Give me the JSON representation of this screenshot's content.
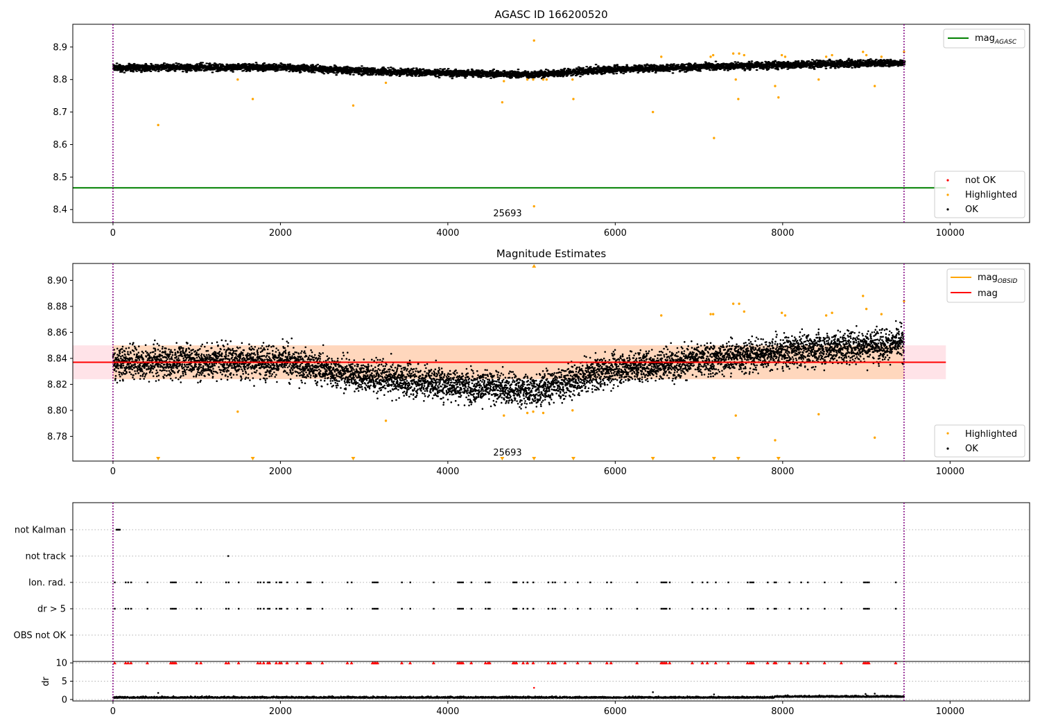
{
  "chart_data": [
    {
      "type": "scatter",
      "title": "AGASC ID 166200520",
      "xlabel": "",
      "ylabel": "",
      "xlim": [
        -480,
        10950
      ],
      "ylim": [
        8.36,
        8.97
      ],
      "x_ticks": [
        "0",
        "2000",
        "4000",
        "6000",
        "8000",
        "10000"
      ],
      "y_ticks": [
        "8.4",
        "8.5",
        "8.6",
        "8.7",
        "8.8",
        "8.9"
      ],
      "obsid_label": "25693",
      "obsid_boundaries": [
        0,
        9450
      ],
      "grid": false,
      "legend_upper": {
        "placement": "upper-right",
        "entries": [
          "mag_AGASC"
        ],
        "entry_main": "mag",
        "entry_sub": "AGASC"
      },
      "legend_lower": {
        "placement": "lower-right",
        "entries": [
          "not OK",
          "Highlighted",
          "OK"
        ]
      },
      "colors": {
        "mag_agasc": "#008000",
        "not_ok": "#ff0000",
        "highlighted": "#ffa500",
        "ok": "#000000",
        "boundary": "#800080"
      },
      "lines": [
        {
          "name": "mag_AGASC",
          "y": 8.467,
          "x_range": [
            -480,
            9950
          ]
        }
      ],
      "series": [
        {
          "name": "OK",
          "points": "dense band, ~9450 points",
          "x_range": [
            0,
            9450
          ],
          "trend": [
            [
              0,
              8.837
            ],
            [
              2000,
              8.838
            ],
            [
              3000,
              8.826
            ],
            [
              5000,
              8.815
            ],
            [
              6000,
              8.832
            ],
            [
              8000,
              8.845
            ],
            [
              9450,
              8.852
            ]
          ]
        },
        {
          "name": "Highlighted",
          "points": [
            [
              540,
              8.66
            ],
            [
              1490,
              8.8
            ],
            [
              1670,
              8.74
            ],
            [
              2870,
              8.72
            ],
            [
              3260,
              8.79
            ],
            [
              4650,
              8.73
            ],
            [
              4670,
              8.795
            ],
            [
              4950,
              8.8
            ],
            [
              5020,
              8.8
            ],
            [
              5030,
              8.92
            ],
            [
              5030,
              8.41
            ],
            [
              5140,
              8.8
            ],
            [
              5180,
              8.8
            ],
            [
              5490,
              8.8
            ],
            [
              5500,
              8.74
            ],
            [
              6450,
              8.7
            ],
            [
              6550,
              8.87
            ],
            [
              7140,
              8.87
            ],
            [
              7170,
              8.875
            ],
            [
              7180,
              8.62
            ],
            [
              7410,
              8.88
            ],
            [
              7440,
              8.8
            ],
            [
              7470,
              8.74
            ],
            [
              7480,
              8.88
            ],
            [
              7540,
              8.875
            ],
            [
              7910,
              8.78
            ],
            [
              7950,
              8.745
            ],
            [
              7990,
              8.875
            ],
            [
              8030,
              8.87
            ],
            [
              8430,
              8.8
            ],
            [
              8520,
              8.87
            ],
            [
              8590,
              8.875
            ],
            [
              8960,
              8.885
            ],
            [
              9000,
              8.875
            ],
            [
              9100,
              8.78
            ],
            [
              9180,
              8.87
            ],
            [
              9450,
              8.885
            ]
          ]
        },
        {
          "name": "not OK",
          "points": []
        }
      ]
    },
    {
      "type": "scatter",
      "title": "Magnitude Estimates",
      "xlabel": "",
      "ylabel": "",
      "xlim": [
        -480,
        10950
      ],
      "ylim": [
        8.761,
        8.913
      ],
      "x_ticks": [
        "0",
        "2000",
        "4000",
        "6000",
        "8000",
        "10000"
      ],
      "y_ticks": [
        "8.78",
        "8.80",
        "8.82",
        "8.84",
        "8.86",
        "8.88",
        "8.90"
      ],
      "obsid_label": "25693",
      "obsid_boundaries": [
        0,
        9450
      ],
      "grid": false,
      "legend_upper": {
        "placement": "upper-right",
        "entries": [
          "mag_OBSID",
          "mag"
        ],
        "entry1_main": "mag",
        "entry1_sub": "OBSID",
        "entry2": "mag"
      },
      "legend_lower": {
        "placement": "lower-right",
        "entries": [
          "Highlighted",
          "OK"
        ]
      },
      "colors": {
        "mag_obsid": "#ffa500",
        "mag": "#ff0000",
        "band_mag": "#ffc0cb",
        "band_obsid": "#ffcfa0",
        "highlighted": "#ffa500",
        "ok": "#000000",
        "boundary": "#800080"
      },
      "lines": [
        {
          "name": "mag",
          "y": 8.837,
          "x_range": [
            -480,
            9950
          ],
          "band": [
            8.824,
            8.85
          ]
        },
        {
          "name": "mag_OBSID",
          "y": 8.837,
          "x_range": [
            0,
            9450
          ],
          "band": [
            8.824,
            8.85
          ]
        }
      ],
      "series": [
        {
          "name": "OK",
          "points": "dense scatter, ~9450 points",
          "x_range": [
            0,
            9450
          ],
          "trend": [
            [
              0,
              8.837
            ],
            [
              2000,
              8.838
            ],
            [
              3000,
              8.826
            ],
            [
              5000,
              8.815
            ],
            [
              6000,
              8.832
            ],
            [
              8000,
              8.845
            ],
            [
              9450,
              8.852
            ]
          ]
        },
        {
          "name": "Highlighted",
          "points": [
            [
              1490,
              8.799
            ],
            [
              3260,
              8.792
            ],
            [
              4670,
              8.796
            ],
            [
              4950,
              8.798
            ],
            [
              5020,
              8.799
            ],
            [
              5140,
              8.798
            ],
            [
              5490,
              8.8
            ],
            [
              6550,
              8.873
            ],
            [
              7140,
              8.874
            ],
            [
              7170,
              8.874
            ],
            [
              7410,
              8.882
            ],
            [
              7440,
              8.796
            ],
            [
              7480,
              8.882
            ],
            [
              7540,
              8.876
            ],
            [
              7910,
              8.777
            ],
            [
              7990,
              8.875
            ],
            [
              8030,
              8.873
            ],
            [
              8430,
              8.797
            ],
            [
              8520,
              8.873
            ],
            [
              8590,
              8.875
            ],
            [
              8960,
              8.888
            ],
            [
              9000,
              8.878
            ],
            [
              9100,
              8.779
            ],
            [
              9180,
              8.874
            ],
            [
              9450,
              8.884
            ]
          ]
        },
        {
          "name": "below range (markers at bottom edge)",
          "x": [
            540,
            1670,
            2870,
            4650,
            5030,
            5500,
            6450,
            7180,
            7470,
            7950
          ]
        },
        {
          "name": "above range (marker at top edge)",
          "x": [
            5030
          ]
        }
      ]
    },
    {
      "type": "scatter",
      "title": "",
      "xlabel": "",
      "ylabel": "",
      "xlim": [
        -480,
        10950
      ],
      "categories": [
        "not Kalman",
        "not track",
        "Ion. rad.",
        "dr > 5",
        "OBS not OK"
      ],
      "grid": "dotted horizontal",
      "colors": {
        "ok": "#000000",
        "boundary": "#800080"
      },
      "series": [
        {
          "name": "not Kalman",
          "x": [
            40,
            50,
            60,
            70,
            80
          ]
        },
        {
          "name": "not track",
          "x": [
            1375
          ]
        },
        {
          "name": "Ion. rad.",
          "x": [
            20,
            150,
            180,
            215,
            410,
            690,
            710,
            730,
            750,
            1000,
            1050,
            1350,
            1380,
            1500,
            1730,
            1760,
            1800,
            1850,
            1870,
            1950,
            1990,
            2010,
            2080,
            2200,
            2320,
            2340,
            2360,
            2500,
            2800,
            2850,
            3100,
            3120,
            3140,
            3160,
            3450,
            3550,
            3830,
            4120,
            4140,
            4160,
            4180,
            4280,
            4450,
            4480,
            4500,
            4780,
            4800,
            4820,
            4900,
            4950,
            5020,
            5200,
            5250,
            5280,
            5400,
            5550,
            5700,
            5900,
            5950,
            6260,
            6550,
            6570,
            6590,
            6610,
            6650,
            6920,
            7040,
            7100,
            7200,
            7350,
            7580,
            7610,
            7630,
            7650,
            7820,
            7900,
            7920,
            8080,
            8220,
            8300,
            8500,
            8700,
            8970,
            8990,
            9010,
            9030,
            9350
          ]
        },
        {
          "name": "dr > 5",
          "x": [
            20,
            150,
            180,
            215,
            410,
            690,
            710,
            730,
            750,
            1000,
            1050,
            1350,
            1380,
            1500,
            1730,
            1760,
            1800,
            1850,
            1870,
            1950,
            1990,
            2010,
            2080,
            2200,
            2320,
            2340,
            2360,
            2500,
            2800,
            2850,
            3100,
            3120,
            3140,
            3160,
            3450,
            3550,
            3830,
            4120,
            4140,
            4160,
            4180,
            4280,
            4450,
            4480,
            4500,
            4780,
            4800,
            4820,
            4900,
            4950,
            5020,
            5200,
            5250,
            5280,
            5400,
            5550,
            5700,
            5900,
            5950,
            6260,
            6550,
            6570,
            6590,
            6610,
            6650,
            6920,
            7040,
            7100,
            7200,
            7350,
            7580,
            7610,
            7630,
            7650,
            7820,
            7900,
            7920,
            8080,
            8220,
            8300,
            8500,
            8700,
            8970,
            8990,
            9010,
            9030,
            9350
          ]
        },
        {
          "name": "OBS not OK",
          "x": []
        }
      ]
    },
    {
      "type": "scatter",
      "title": "",
      "xlabel": "",
      "ylabel": "dr",
      "xlim": [
        -480,
        10950
      ],
      "ylim": [
        -0.4,
        10.4
      ],
      "x_ticks": [
        "0",
        "2000",
        "4000",
        "6000",
        "8000",
        "10000"
      ],
      "y_ticks": [
        "0",
        "5",
        "10"
      ],
      "grid": "dotted horizontal",
      "colors": {
        "ok": "#000000",
        "clipped": "#ff0000",
        "boundary": "#800080"
      },
      "series": [
        {
          "name": "dr",
          "points": "dense band near 0.4, ~9450 points",
          "x_range": [
            0,
            9450
          ],
          "outliers": [
            [
              540,
              1.8
            ],
            [
              5030,
              3.2
            ],
            [
              6450,
              2.0
            ],
            [
              7180,
              1.4
            ],
            [
              8990,
              1.5
            ],
            [
              9100,
              1.6
            ]
          ]
        },
        {
          "name": "dr clipped at 10",
          "x": [
            20,
            150,
            180,
            215,
            410,
            690,
            710,
            730,
            750,
            1000,
            1050,
            1350,
            1380,
            1500,
            1730,
            1760,
            1800,
            1850,
            1870,
            1950,
            1990,
            2010,
            2080,
            2200,
            2320,
            2340,
            2360,
            2500,
            2800,
            2850,
            3100,
            3120,
            3140,
            3160,
            3450,
            3550,
            3830,
            4120,
            4140,
            4160,
            4180,
            4280,
            4450,
            4480,
            4500,
            4780,
            4800,
            4820,
            4900,
            4950,
            5020,
            5200,
            5250,
            5280,
            5400,
            5550,
            5700,
            5900,
            5950,
            6260,
            6550,
            6570,
            6590,
            6610,
            6650,
            6920,
            7040,
            7100,
            7200,
            7350,
            7580,
            7610,
            7630,
            7650,
            7820,
            7900,
            7920,
            8080,
            8220,
            8300,
            8500,
            8700,
            8970,
            8990,
            9010,
            9030,
            9350
          ]
        }
      ]
    }
  ]
}
